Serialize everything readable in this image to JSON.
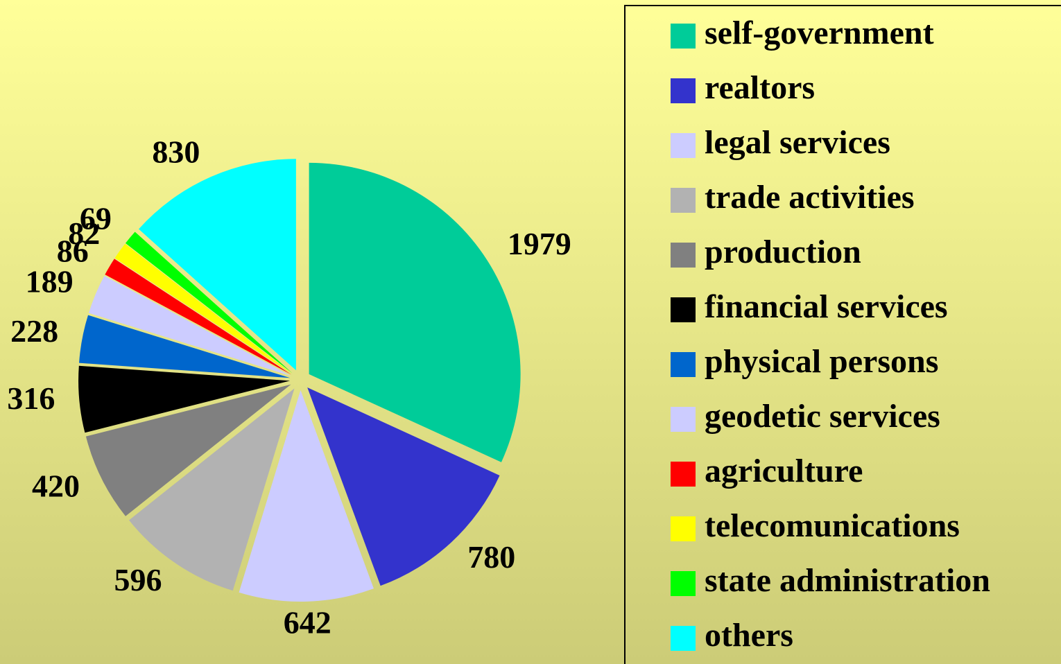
{
  "chart_data": {
    "type": "pie",
    "categories": [
      "self-government",
      "realtors",
      "legal services",
      "trade activities",
      "production",
      "financial services",
      "physical persons",
      "geodetic services",
      "agriculture",
      "telecomunications",
      "state administration",
      "others"
    ],
    "values": [
      1979,
      780,
      642,
      596,
      420,
      316,
      228,
      189,
      86,
      82,
      69,
      830
    ],
    "colors": [
      "#00cc99",
      "#3333cc",
      "#ccccff",
      "#b2b2b2",
      "#808080",
      "#000000",
      "#0066cc",
      "#ccccff",
      "#ff0000",
      "#ffff00",
      "#00ff00",
      "#00ffff"
    ],
    "legend": "right"
  }
}
